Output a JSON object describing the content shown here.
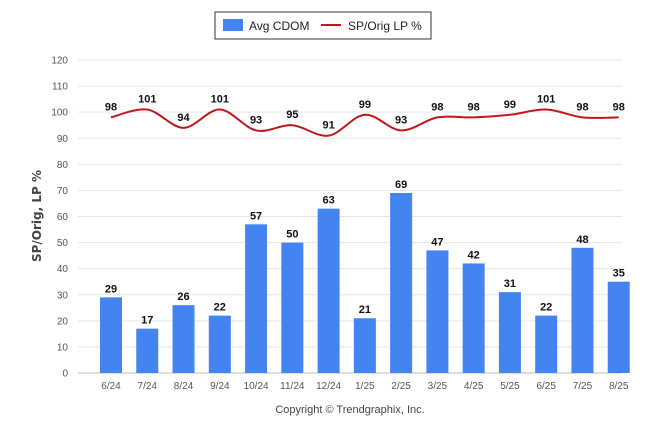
{
  "chart_data": {
    "type": "bar",
    "categories": [
      "6/24",
      "7/24",
      "8/24",
      "9/24",
      "10/24",
      "11/24",
      "12/24",
      "1/25",
      "2/25",
      "3/25",
      "4/25",
      "5/25",
      "6/25",
      "7/25",
      "8/25"
    ],
    "series": [
      {
        "name": "Avg CDOM",
        "type": "bar",
        "color": "#4384f0",
        "values": [
          29,
          17,
          26,
          22,
          57,
          50,
          63,
          21,
          69,
          47,
          42,
          31,
          22,
          48,
          35
        ]
      },
      {
        "name": "SP/Orig LP %",
        "type": "line",
        "color": "#c0161b",
        "values": [
          98,
          101,
          94,
          101,
          93,
          95,
          91,
          99,
          93,
          98,
          98,
          99,
          101,
          98,
          98
        ]
      }
    ],
    "ylabel": "SP/Orig, LP %",
    "xlabel": "",
    "ylim": [
      0,
      120
    ],
    "yticks": [
      0,
      10,
      20,
      30,
      40,
      50,
      60,
      70,
      80,
      90,
      100,
      110,
      120
    ],
    "grid": true,
    "legend_position": "top-center",
    "footer": "Copyright © Trendgraphix, Inc."
  }
}
